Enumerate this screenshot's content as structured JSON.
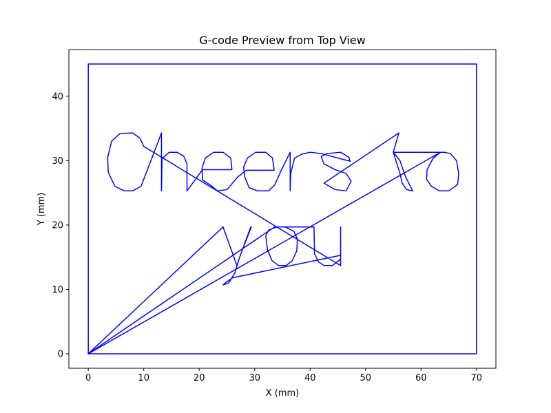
{
  "chart_data": {
    "type": "line",
    "title": "G-code Preview from Top View",
    "xlabel": "X (mm)",
    "ylabel": "Y (mm)",
    "xlim": [
      -3.5,
      73.5
    ],
    "ylim": [
      -2.25,
      47.25
    ],
    "xticks": [
      0,
      10,
      20,
      30,
      40,
      50,
      60,
      70
    ],
    "yticks": [
      0,
      10,
      20,
      30,
      40
    ],
    "grid": false,
    "series_color": "#0000ff",
    "series": [
      {
        "name": "",
        "points": [
          [
            0,
            0
          ],
          [
            0,
            45
          ],
          [
            70,
            45
          ],
          [
            70,
            0
          ],
          [
            0,
            0
          ],
          [
            63.5,
            31.3
          ],
          [
            62.2,
            30.4
          ],
          [
            61.1,
            28.6
          ],
          [
            61.0,
            27.1
          ],
          [
            61.9,
            26.0
          ],
          [
            63.3,
            25.3
          ],
          [
            65.0,
            25.3
          ],
          [
            66.6,
            26.3
          ],
          [
            66.8,
            28.0
          ],
          [
            66.4,
            30.0
          ],
          [
            65.3,
            31.1
          ],
          [
            64.2,
            31.3
          ],
          [
            63.5,
            31.3
          ],
          [
            55.0,
            31.3
          ],
          [
            62.0,
            31.3
          ],
          [
            61.0,
            31.3
          ],
          [
            55.0,
            31.3
          ],
          [
            56.2,
            28.0
          ],
          [
            56.6,
            26.5
          ],
          [
            57.4,
            25.5
          ],
          [
            58.5,
            25.3
          ],
          [
            57.2,
            27.5
          ],
          [
            56.2,
            30.0
          ],
          [
            55.0,
            31.3
          ],
          [
            56.0,
            34.3
          ],
          [
            42.5,
            26.5
          ],
          [
            44.5,
            25.5
          ],
          [
            46.5,
            25.3
          ],
          [
            47.4,
            26.8
          ],
          [
            46.5,
            28.0
          ],
          [
            44.5,
            28.6
          ],
          [
            42.5,
            29.5
          ],
          [
            42.0,
            30.6
          ],
          [
            43.0,
            31.1
          ],
          [
            45.5,
            31.3
          ],
          [
            47.0,
            30.5
          ],
          [
            47.2,
            29.9
          ],
          [
            42.0,
            31.1
          ],
          [
            40.0,
            31.3
          ],
          [
            38.5,
            31.0
          ],
          [
            37.2,
            30.4
          ],
          [
            36.5,
            28.0
          ],
          [
            36.4,
            25.3
          ],
          [
            36.4,
            31.3
          ],
          [
            34.8,
            28.5
          ],
          [
            33.6,
            26.2
          ],
          [
            32.5,
            25.3
          ],
          [
            30.5,
            25.3
          ],
          [
            29.0,
            25.8
          ],
          [
            28.2,
            27.5
          ],
          [
            28.0,
            29.0
          ],
          [
            28.7,
            30.4
          ],
          [
            30.2,
            31.3
          ],
          [
            32.0,
            31.3
          ],
          [
            33.2,
            30.4
          ],
          [
            33.5,
            28.7
          ],
          [
            33.5,
            28.5
          ],
          [
            28.5,
            28.5
          ],
          [
            27.0,
            27.5
          ],
          [
            25.0,
            25.5
          ],
          [
            23.3,
            25.3
          ],
          [
            22.0,
            26.2
          ],
          [
            20.6,
            27.0
          ],
          [
            20.5,
            28.8
          ],
          [
            21.1,
            30.4
          ],
          [
            22.6,
            31.3
          ],
          [
            24.3,
            31.3
          ],
          [
            25.7,
            30.4
          ],
          [
            25.9,
            28.6
          ],
          [
            20.6,
            28.6
          ],
          [
            17.8,
            25.3
          ],
          [
            17.8,
            29.5
          ],
          [
            17.2,
            30.7
          ],
          [
            16.0,
            31.3
          ],
          [
            14.6,
            31.3
          ],
          [
            13.3,
            30.3
          ],
          [
            13.2,
            25.3
          ],
          [
            13.2,
            34.3
          ],
          [
            10.0,
            27.1
          ],
          [
            9.5,
            26.0
          ],
          [
            8.0,
            25.3
          ],
          [
            6.5,
            25.3
          ],
          [
            4.8,
            26.0
          ],
          [
            3.6,
            28.2
          ],
          [
            3.5,
            30.5
          ],
          [
            4.2,
            33.0
          ],
          [
            5.7,
            34.2
          ],
          [
            8.0,
            34.3
          ],
          [
            9.3,
            33.5
          ],
          [
            10.0,
            32.2
          ],
          [
            45.5,
            13.7
          ],
          [
            45.5,
            19.7
          ],
          [
            45.5,
            14.7
          ],
          [
            44.0,
            13.7
          ],
          [
            42.5,
            13.7
          ],
          [
            41.5,
            14.3
          ],
          [
            40.8,
            15.5
          ],
          [
            40.7,
            19.7
          ],
          [
            34.0,
            19.7
          ],
          [
            32.5,
            19.2
          ],
          [
            32.0,
            18.3
          ],
          [
            32.3,
            16.2
          ],
          [
            33.1,
            14.5
          ],
          [
            34.3,
            13.7
          ],
          [
            35.7,
            13.7
          ],
          [
            36.8,
            14.5
          ],
          [
            37.6,
            16.0
          ],
          [
            37.7,
            17.8
          ],
          [
            37.1,
            19.0
          ],
          [
            35.5,
            19.7
          ],
          [
            33.6,
            19.7
          ],
          [
            0,
            0
          ],
          [
            24.3,
            19.7
          ],
          [
            26.8,
            13.7
          ],
          [
            27.5,
            15.5
          ],
          [
            29.4,
            19.7
          ],
          [
            29.3,
            19.7
          ],
          [
            27.3,
            15.0
          ],
          [
            26.4,
            12.5
          ],
          [
            25.3,
            11.0
          ],
          [
            24.3,
            10.7
          ],
          [
            25.0,
            11.2
          ],
          [
            26.0,
            11.8
          ],
          [
            45.5,
            15.3
          ],
          [
            45.5,
            19.7
          ],
          [
            45.5,
            13.7
          ]
        ]
      }
    ]
  }
}
